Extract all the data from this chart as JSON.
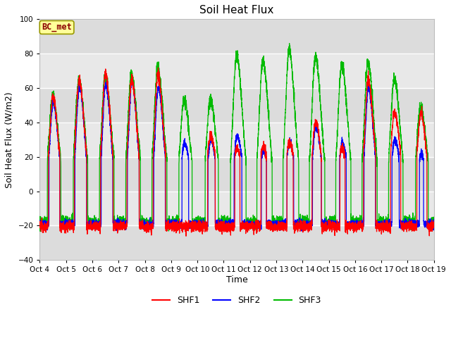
{
  "title": "Soil Heat Flux",
  "ylabel": "Soil Heat Flux (W/m2)",
  "xlabel": "Time",
  "ylim": [
    -40,
    100
  ],
  "yticks": [
    -40,
    -20,
    0,
    20,
    40,
    60,
    80,
    100
  ],
  "colors": {
    "SHF1": "#FF0000",
    "SHF2": "#0000FF",
    "SHF3": "#00BB00"
  },
  "plot_bg": "#E8E8E8",
  "annotation_text": "BC_met",
  "annotation_color": "#8B0000",
  "annotation_bg": "#FFFF99",
  "n_days": 15,
  "legend_labels": [
    "SHF1",
    "SHF2",
    "SHF3"
  ],
  "xtick_labels": [
    "Oct 4",
    "Oct 5",
    "Oct 6",
    "Oct 7",
    "Oct 8",
    "Oct 9",
    "Oct 10",
    "Oct 11",
    "Oct 12",
    "Oct 13",
    "Oct 14",
    "Oct 15",
    "Oct 16",
    "Oct 17",
    "Oct 18",
    "Oct 19"
  ],
  "day_peaks_shf1": [
    55,
    65,
    68,
    65,
    67,
    20,
    32,
    25,
    26,
    28,
    40,
    25,
    65,
    46,
    45
  ],
  "day_peaks_shf2": [
    52,
    62,
    62,
    63,
    60,
    28,
    30,
    32,
    24,
    28,
    38,
    28,
    60,
    30,
    22
  ],
  "day_peaks_shf3": [
    55,
    65,
    67,
    68,
    72,
    53,
    53,
    79,
    76,
    82,
    78,
    74,
    75,
    65,
    49
  ]
}
